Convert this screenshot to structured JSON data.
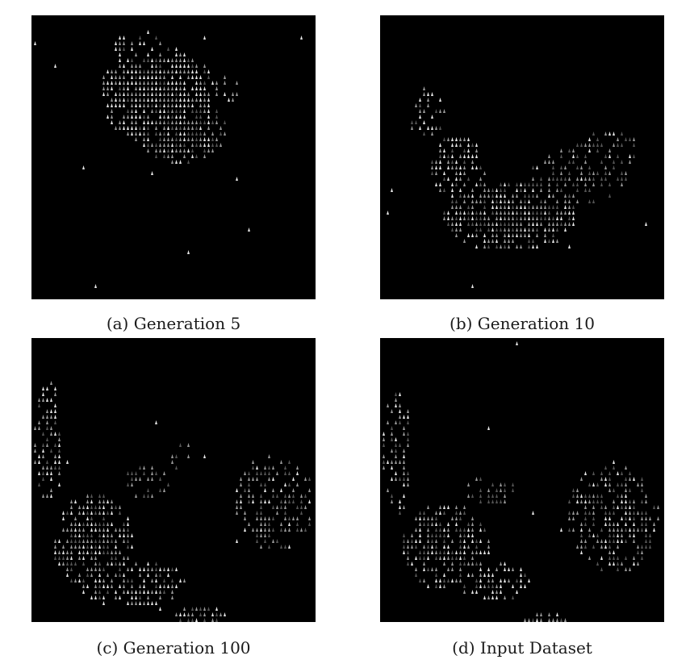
{
  "figure": {
    "panels": [
      {
        "label": "(a)",
        "caption": "Generation 5"
      },
      {
        "label": "(b)",
        "caption": "Generation 10"
      },
      {
        "label": "(c)",
        "caption": "Generation 100"
      },
      {
        "label": "(d)",
        "caption": "Input Dataset"
      }
    ],
    "colors": {
      "panel_background": "#000000",
      "glyph_bright": "#e6e6e6",
      "glyph_mid": "#9a9a9a",
      "glyph_dim": "#555555"
    }
  }
}
